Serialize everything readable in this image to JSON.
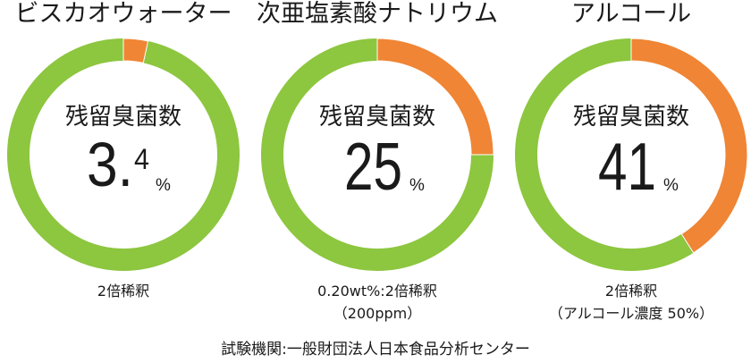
{
  "chart_data": [
    {
      "type": "pie",
      "donut": true,
      "title": "ビスカオウォーター",
      "center_label": "残留臭菌数",
      "value": 3.4,
      "unit": "%",
      "notes": [
        "2倍稀釈"
      ]
    },
    {
      "type": "pie",
      "donut": true,
      "title": "次亜塩素酸ナトリウム",
      "center_label": "残留臭菌数",
      "value": 25,
      "unit": "%",
      "notes": [
        "0.20wt%:2倍稀釈",
        "（200ppm）"
      ]
    },
    {
      "type": "pie",
      "donut": true,
      "title": "アルコール",
      "center_label": "残留臭菌数",
      "value": 41,
      "unit": "%",
      "notes": [
        "2倍稀釈",
        "（アルコール濃度 50%）"
      ]
    }
  ],
  "colors": {
    "value_segment": "#ef8535",
    "remainder_ring": "#8dc63f",
    "text": "#1a1a1a"
  },
  "footer": "試験機関:一般財団法人日本食品分析センター"
}
